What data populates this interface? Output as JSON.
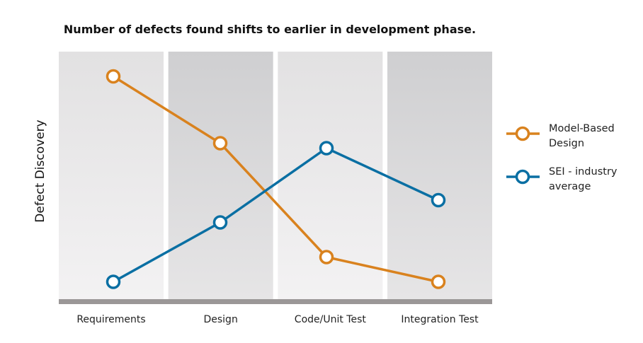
{
  "chart_data": {
    "type": "line",
    "title": "Number of defects found shifts to earlier in development phase.",
    "xlabel": "",
    "ylabel": "Defect Discovery",
    "ylim": [
      0,
      100
    ],
    "grid": false,
    "legend_position": "right",
    "categories": [
      "Requirements",
      "Design",
      "Code/Unit Test",
      "Integration Test"
    ],
    "series": [
      {
        "name": "Model-Based Design",
        "label_lines": [
          "Model-Based",
          "Design"
        ],
        "color": "#d9821e",
        "values": [
          90,
          63,
          17,
          7
        ]
      },
      {
        "name": "SEI - industry average",
        "label_lines": [
          "SEI - industry",
          "average"
        ],
        "color": "#0a6fa3",
        "values": [
          7,
          31,
          61,
          40
        ]
      }
    ]
  }
}
